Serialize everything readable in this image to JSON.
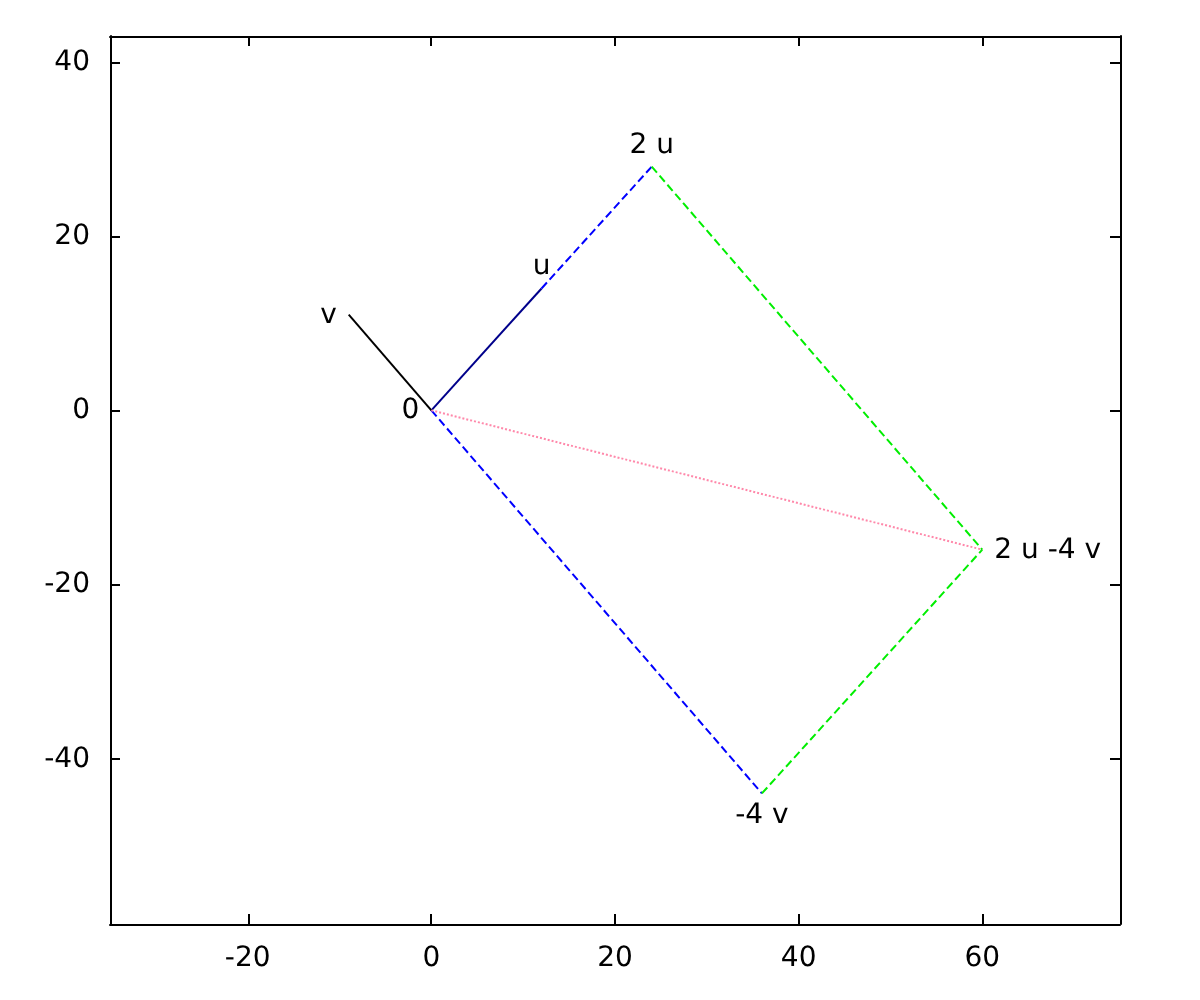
{
  "chart_data": {
    "type": "line",
    "xlim": [
      -35,
      75
    ],
    "ylim": [
      -59,
      43
    ],
    "xticks": [
      -20,
      0,
      20,
      40,
      60
    ],
    "yticks": [
      -40,
      -20,
      0,
      20,
      40
    ],
    "grid": false,
    "marker": "none",
    "series": [
      {
        "x": [
          0,
          12
        ],
        "values": [
          0,
          14
        ],
        "color": "#00008b",
        "line_style": "solid"
      },
      {
        "x": [
          0,
          -9
        ],
        "values": [
          0,
          11
        ],
        "color": "#000000",
        "line_style": "solid"
      },
      {
        "x": [
          12,
          24
        ],
        "values": [
          14,
          28
        ],
        "color": "#0000ff",
        "line_style": "dashed"
      },
      {
        "x": [
          0,
          36
        ],
        "values": [
          0,
          -44
        ],
        "color": "#0000ff",
        "line_style": "dashed"
      },
      {
        "x": [
          24,
          60
        ],
        "values": [
          28,
          -16
        ],
        "color": "#00ee00",
        "line_style": "dashed"
      },
      {
        "x": [
          36,
          60
        ],
        "values": [
          -44,
          -16
        ],
        "color": "#00ee00",
        "line_style": "dashed"
      },
      {
        "x": [
          0,
          60
        ],
        "values": [
          0,
          -16
        ],
        "color": "#ff88aa",
        "line_style": "dotted"
      }
    ],
    "annotations": [
      {
        "text": "0",
        "x": 0,
        "y": 0
      },
      {
        "text": "u",
        "x": 12,
        "y": 14
      },
      {
        "text": "v",
        "x": -9,
        "y": 11
      },
      {
        "text": "2 u",
        "x": 24,
        "y": 28
      },
      {
        "text": "-4 v",
        "x": 36,
        "y": -44
      },
      {
        "text": "2 u -4 v",
        "x": 60,
        "y": -16
      }
    ]
  }
}
